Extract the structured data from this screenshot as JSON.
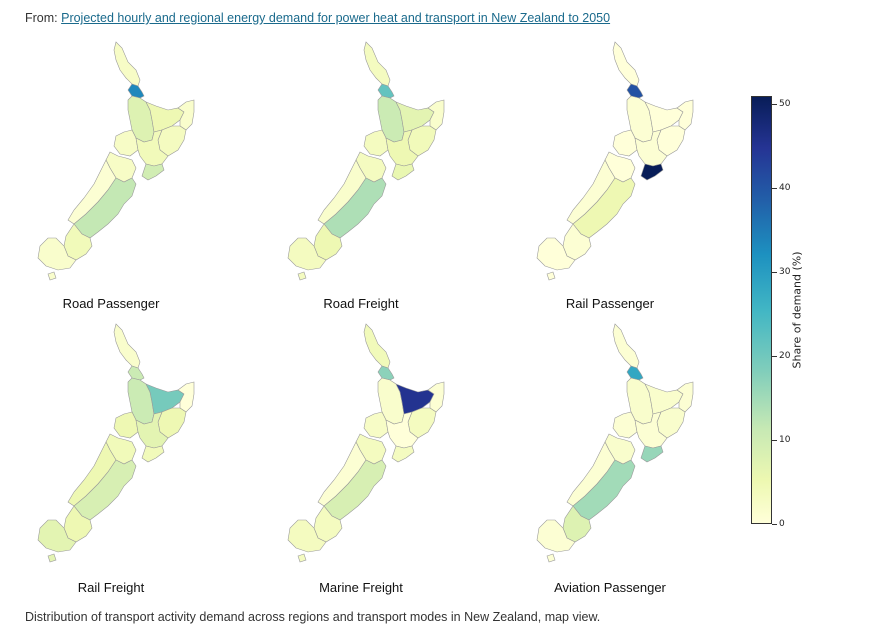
{
  "header": {
    "prefix": "From: ",
    "link_text": "Projected hourly and regional energy demand for power heat and transport in New Zealand to 2050"
  },
  "caption": "Distribution of transport activity demand across regions and transport modes in New Zealand, map view.",
  "colorbar": {
    "label": "Share of demand (%)",
    "min": 0,
    "max": 51,
    "ticks": [
      "0",
      "10",
      "20",
      "30",
      "40",
      "50"
    ],
    "scale": [
      "#ffffd9",
      "#edf8b1",
      "#c7e9b4",
      "#7fcdbb",
      "#41b6c4",
      "#1d91c0",
      "#225ea8",
      "#253494",
      "#081d58"
    ]
  },
  "maps": [
    {
      "title": "Road Passenger",
      "shares": {
        "northland": 3,
        "auckland": 33,
        "waikato": 9,
        "bay_of_plenty": 6,
        "gisborne": 2,
        "hawkes_bay": 4,
        "taranaki": 3,
        "manawatu": 5,
        "wellington": 11,
        "tasman_nelson_marlborough": 3,
        "west_coast": 1,
        "canterbury": 13,
        "otago": 5,
        "southland": 2
      }
    },
    {
      "title": "Road Freight",
      "shares": {
        "northland": 4,
        "auckland": 22,
        "waikato": 12,
        "bay_of_plenty": 8,
        "gisborne": 2,
        "hawkes_bay": 5,
        "taranaki": 4,
        "manawatu": 6,
        "wellington": 7,
        "tasman_nelson_marlborough": 4,
        "west_coast": 2,
        "canterbury": 15,
        "otago": 6,
        "southland": 4
      }
    },
    {
      "title": "Rail Passenger",
      "shares": {
        "northland": 0,
        "auckland": 40,
        "waikato": 1,
        "bay_of_plenty": 0,
        "gisborne": 0,
        "hawkes_bay": 0,
        "taranaki": 0,
        "manawatu": 1,
        "wellington": 51,
        "tasman_nelson_marlborough": 0,
        "west_coast": 1,
        "canterbury": 6,
        "otago": 1,
        "southland": 0
      }
    },
    {
      "title": "Rail Freight",
      "shares": {
        "northland": 2,
        "auckland": 12,
        "waikato": 12,
        "bay_of_plenty": 20,
        "gisborne": 0,
        "hawkes_bay": 6,
        "taranaki": 6,
        "manawatu": 8,
        "wellington": 5,
        "tasman_nelson_marlborough": 5,
        "west_coast": 6,
        "canterbury": 10,
        "otago": 6,
        "southland": 8
      }
    },
    {
      "title": "Marine Freight",
      "shares": {
        "northland": 5,
        "auckland": 18,
        "waikato": 2,
        "bay_of_plenty": 45,
        "gisborne": 1,
        "hawkes_bay": 4,
        "taranaki": 3,
        "manawatu": 0,
        "wellington": 4,
        "tasman_nelson_marlborough": 4,
        "west_coast": 1,
        "canterbury": 10,
        "otago": 4,
        "southland": 4
      }
    },
    {
      "title": "Aviation Passenger",
      "shares": {
        "northland": 1,
        "auckland": 28,
        "waikato": 2,
        "bay_of_plenty": 2,
        "gisborne": 1,
        "hawkes_bay": 2,
        "taranaki": 1,
        "manawatu": 1,
        "wellington": 17,
        "tasman_nelson_marlborough": 2,
        "west_coast": 1,
        "canterbury": 16,
        "otago": 9,
        "southland": 1
      }
    }
  ]
}
